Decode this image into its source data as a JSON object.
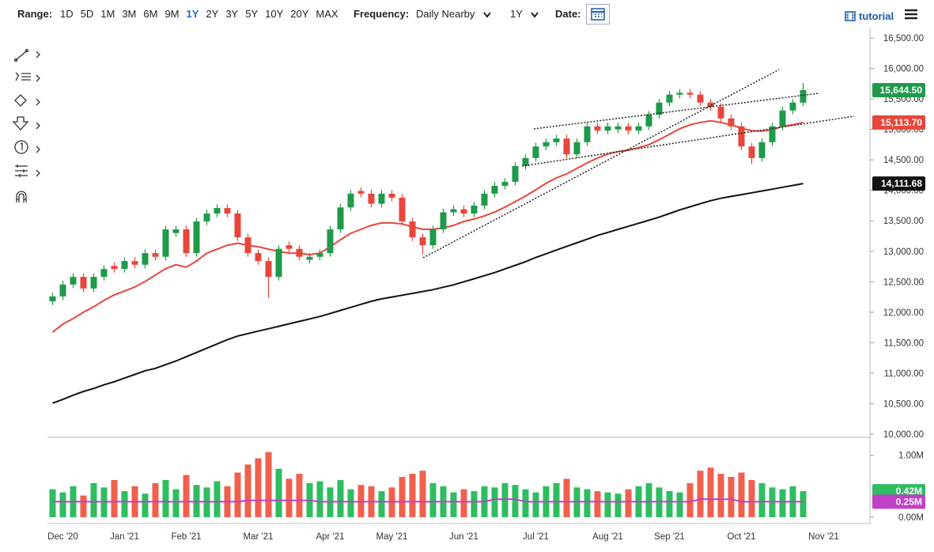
{
  "toolbar": {
    "range_label": "Range:",
    "ranges": [
      "1D",
      "5D",
      "1M",
      "3M",
      "6M",
      "9M",
      "1Y",
      "2Y",
      "3Y",
      "5Y",
      "10Y",
      "20Y",
      "MAX"
    ],
    "active_range": "1Y",
    "frequency_label": "Frequency:",
    "frequency": "Daily Nearby",
    "period": "1Y",
    "date_label": "Date:",
    "tutorial": "tutorial"
  },
  "chart_data": [
    {
      "type": "candlestick",
      "up_color": "#1e9a4a",
      "down_color": "#e8463a",
      "ylim": [
        10000,
        16500
      ],
      "yticks": [
        {
          "value": 10000,
          "label": "10,000.00"
        },
        {
          "value": 10500,
          "label": "10,500.00"
        },
        {
          "value": 11000,
          "label": "11,000.00"
        },
        {
          "value": 11500,
          "label": "11,500.00"
        },
        {
          "value": 12000,
          "label": "12,000.00"
        },
        {
          "value": 12500,
          "label": "12,500.00"
        },
        {
          "value": 13000,
          "label": "13,000.00"
        },
        {
          "value": 13500,
          "label": "13,500.00"
        },
        {
          "value": 14000,
          "label": "14,000.00"
        },
        {
          "value": 14500,
          "label": "14,500.00"
        },
        {
          "value": 15000,
          "label": "15,000.00"
        },
        {
          "value": 15500,
          "label": "15,500.00"
        },
        {
          "value": 16000,
          "label": "16,000.00"
        },
        {
          "value": 16500,
          "label": "16,500.00"
        }
      ],
      "open": [
        12180,
        12260,
        12455,
        12580,
        12390,
        12580,
        12760,
        12710,
        12840,
        12780,
        12970,
        12910,
        13300,
        13360,
        12970,
        13490,
        13620,
        13710,
        13620,
        13230,
        12970,
        12840,
        12580,
        13100,
        13040,
        12860,
        12910,
        12970,
        13360,
        13720,
        13990,
        13945,
        13780,
        13945,
        13880,
        13490,
        13230,
        13100,
        13360,
        13640,
        13690,
        13620,
        13750,
        13945,
        14075,
        14140,
        14400,
        14530,
        14720,
        14790,
        14850,
        14590,
        14790,
        15050,
        14980,
        15000,
        15050,
        14980,
        15050,
        15240,
        15440,
        15570,
        15600,
        15570,
        15440,
        15370,
        15180,
        15050,
        14720,
        14530,
        14790,
        15050,
        15310,
        15440,
        null,
        null,
        null,
        null,
        null,
        null
      ],
      "high": [
        12320,
        12515,
        12640,
        12640,
        12640,
        12770,
        12820,
        12900,
        12900,
        13030,
        13030,
        13420,
        13420,
        13420,
        13550,
        13680,
        13770,
        13770,
        13680,
        13290,
        13030,
        12900,
        13100,
        13160,
        13100,
        12970,
        13030,
        13420,
        13780,
        14005,
        14050,
        14005,
        14005,
        14005,
        13940,
        13550,
        13290,
        13420,
        13700,
        13750,
        13750,
        13810,
        14005,
        14135,
        14200,
        14460,
        14590,
        14780,
        14850,
        14910,
        14910,
        14850,
        15110,
        15110,
        15110,
        15110,
        15110,
        15110,
        15300,
        15500,
        15630,
        15660,
        15660,
        15630,
        15500,
        15430,
        15240,
        15110,
        14780,
        14850,
        15110,
        15370,
        15500,
        15760,
        null,
        null,
        null,
        null,
        null,
        null
      ],
      "low": [
        12120,
        12200,
        12395,
        12330,
        12330,
        12520,
        12650,
        12650,
        12720,
        12720,
        12850,
        12850,
        13240,
        12910,
        12910,
        13430,
        13560,
        13560,
        13170,
        12910,
        12780,
        12240,
        12520,
        12980,
        12850,
        12800,
        12850,
        12910,
        13300,
        13660,
        13885,
        13720,
        13720,
        13820,
        13430,
        13170,
        12950,
        13040,
        13300,
        13580,
        13560,
        13560,
        13690,
        13885,
        14015,
        14080,
        14340,
        14470,
        14660,
        14730,
        14530,
        14530,
        14730,
        14920,
        14920,
        14940,
        14920,
        14920,
        14990,
        15180,
        15380,
        15510,
        15510,
        15380,
        15310,
        15120,
        14990,
        14660,
        14430,
        14470,
        14730,
        14990,
        15250,
        15380,
        null,
        null,
        null,
        null,
        null,
        null
      ],
      "close": [
        12260,
        12455,
        12580,
        12390,
        12580,
        12710,
        12710,
        12840,
        12780,
        12970,
        12910,
        13360,
        13360,
        12970,
        13490,
        13620,
        13710,
        13620,
        13230,
        12970,
        12840,
        12580,
        13040,
        13040,
        12910,
        12910,
        12970,
        13360,
        13720,
        13945,
        13945,
        13780,
        13945,
        13880,
        13490,
        13230,
        13100,
        13360,
        13640,
        13690,
        13620,
        13750,
        13945,
        14075,
        14140,
        14400,
        14530,
        14720,
        14790,
        14850,
        14590,
        14790,
        15050,
        14980,
        15050,
        15050,
        14980,
        15050,
        15240,
        15440,
        15570,
        15600,
        15570,
        15440,
        15370,
        15180,
        15050,
        14720,
        14530,
        14790,
        15050,
        15310,
        15440,
        15644.5,
        null,
        null,
        null,
        null,
        null,
        null
      ],
      "last_label": "15,644.50",
      "last_color": "#1e9a4a",
      "series": [
        {
          "color": "#e8463a",
          "last_label": "15,113.70",
          "values": [
            11675,
            11805,
            11895,
            12000,
            12090,
            12195,
            12285,
            12350,
            12415,
            12505,
            12610,
            12715,
            12780,
            12740,
            12840,
            12970,
            13035,
            13100,
            13130,
            13100,
            13075,
            13035,
            13000,
            12970,
            12970,
            12945,
            12970,
            13075,
            13190,
            13295,
            13360,
            13425,
            13465,
            13465,
            13450,
            13400,
            13360,
            13360,
            13385,
            13425,
            13490,
            13530,
            13580,
            13645,
            13725,
            13815,
            13905,
            14010,
            14115,
            14205,
            14270,
            14360,
            14450,
            14530,
            14595,
            14635,
            14660,
            14700,
            14750,
            14830,
            14920,
            15010,
            15075,
            15115,
            15140,
            15115,
            15075,
            15020,
            14980,
            14970,
            14995,
            15050,
            15075,
            15113.7,
            null,
            null,
            null,
            null,
            null,
            null
          ]
        },
        {
          "color": "#111111",
          "last_label": "14,111.68",
          "values": [
            10510,
            10570,
            10640,
            10700,
            10750,
            10810,
            10860,
            10920,
            10980,
            11040,
            11080,
            11140,
            11200,
            11270,
            11340,
            11410,
            11480,
            11550,
            11610,
            11650,
            11690,
            11730,
            11770,
            11810,
            11850,
            11890,
            11930,
            11980,
            12030,
            12080,
            12130,
            12180,
            12220,
            12250,
            12280,
            12310,
            12340,
            12370,
            12410,
            12450,
            12500,
            12550,
            12600,
            12650,
            12710,
            12770,
            12830,
            12900,
            12960,
            13020,
            13080,
            13140,
            13200,
            13260,
            13310,
            13360,
            13410,
            13460,
            13510,
            13560,
            13620,
            13680,
            13730,
            13780,
            13830,
            13870,
            13900,
            13930,
            13960,
            13990,
            14020,
            14050,
            14080,
            14111.68,
            null,
            null,
            null,
            null,
            null,
            null
          ]
        }
      ]
    },
    {
      "type": "volume",
      "up_color": "#2ebd5f",
      "down_color": "#f0604c",
      "categories": [
        null,
        "Dec '20",
        null,
        null,
        null,
        null,
        null,
        "Jan '21",
        null,
        null,
        null,
        null,
        null,
        "Feb '21",
        null,
        null,
        null,
        null,
        null,
        null,
        "Mar '21",
        null,
        null,
        null,
        null,
        null,
        null,
        "Apr '21",
        null,
        null,
        null,
        null,
        null,
        "May '21",
        null,
        null,
        null,
        null,
        null,
        null,
        "Jun '21",
        null,
        null,
        null,
        null,
        null,
        null,
        "Jul '21",
        null,
        null,
        null,
        null,
        null,
        null,
        "Aug '21",
        null,
        null,
        null,
        null,
        null,
        "Sep '21",
        null,
        null,
        null,
        null,
        null,
        null,
        "Oct '21",
        null,
        null,
        null,
        null,
        null,
        null,
        null,
        "Nov '21",
        null,
        null,
        null,
        null
      ],
      "ylim": [
        0,
        1.25
      ],
      "yticks": [
        {
          "value": 0,
          "label": "0.00M"
        },
        {
          "value": 1,
          "label": "1.00M"
        }
      ],
      "values": [
        0.45,
        0.4,
        0.5,
        0.35,
        0.55,
        0.48,
        0.6,
        0.42,
        0.5,
        0.38,
        0.55,
        0.6,
        0.45,
        0.68,
        0.52,
        0.48,
        0.58,
        0.5,
        0.72,
        0.85,
        0.95,
        1.05,
        0.78,
        0.62,
        0.7,
        0.55,
        0.58,
        0.48,
        0.6,
        0.45,
        0.52,
        0.5,
        0.42,
        0.48,
        0.65,
        0.7,
        0.75,
        0.55,
        0.5,
        0.4,
        0.45,
        0.42,
        0.5,
        0.48,
        0.55,
        0.52,
        0.45,
        0.4,
        0.5,
        0.55,
        0.62,
        0.48,
        0.45,
        0.42,
        0.4,
        0.38,
        0.45,
        0.5,
        0.55,
        0.48,
        0.42,
        0.4,
        0.55,
        0.75,
        0.8,
        0.7,
        0.65,
        0.72,
        0.6,
        0.55,
        0.48,
        0.45,
        0.5,
        0.42,
        null,
        null,
        null,
        null,
        null,
        null
      ],
      "last_label": "0.42M",
      "last_color": "#2ebd5f",
      "series": [
        {
          "color": "#c040c8",
          "last_label": "0.25M",
          "values": [
            0.25,
            0.25,
            0.25,
            0.25,
            0.25,
            0.25,
            0.25,
            0.25,
            0.25,
            0.25,
            0.25,
            0.25,
            0.25,
            0.25,
            0.25,
            0.25,
            0.25,
            0.25,
            0.25,
            0.27,
            0.27,
            0.27,
            0.27,
            0.27,
            0.27,
            0.27,
            0.25,
            0.25,
            0.25,
            0.25,
            0.25,
            0.25,
            0.25,
            0.25,
            0.25,
            0.25,
            0.25,
            0.25,
            0.25,
            0.25,
            0.25,
            0.25,
            0.25,
            0.29,
            0.29,
            0.29,
            0.25,
            0.25,
            0.25,
            0.25,
            0.25,
            0.25,
            0.25,
            0.25,
            0.25,
            0.25,
            0.25,
            0.25,
            0.25,
            0.25,
            0.25,
            0.25,
            0.25,
            0.29,
            0.29,
            0.29,
            0.29,
            0.25,
            0.25,
            0.25,
            0.25,
            0.25,
            0.25,
            0.25,
            null,
            null,
            null,
            null,
            null,
            null
          ]
        }
      ]
    }
  ]
}
